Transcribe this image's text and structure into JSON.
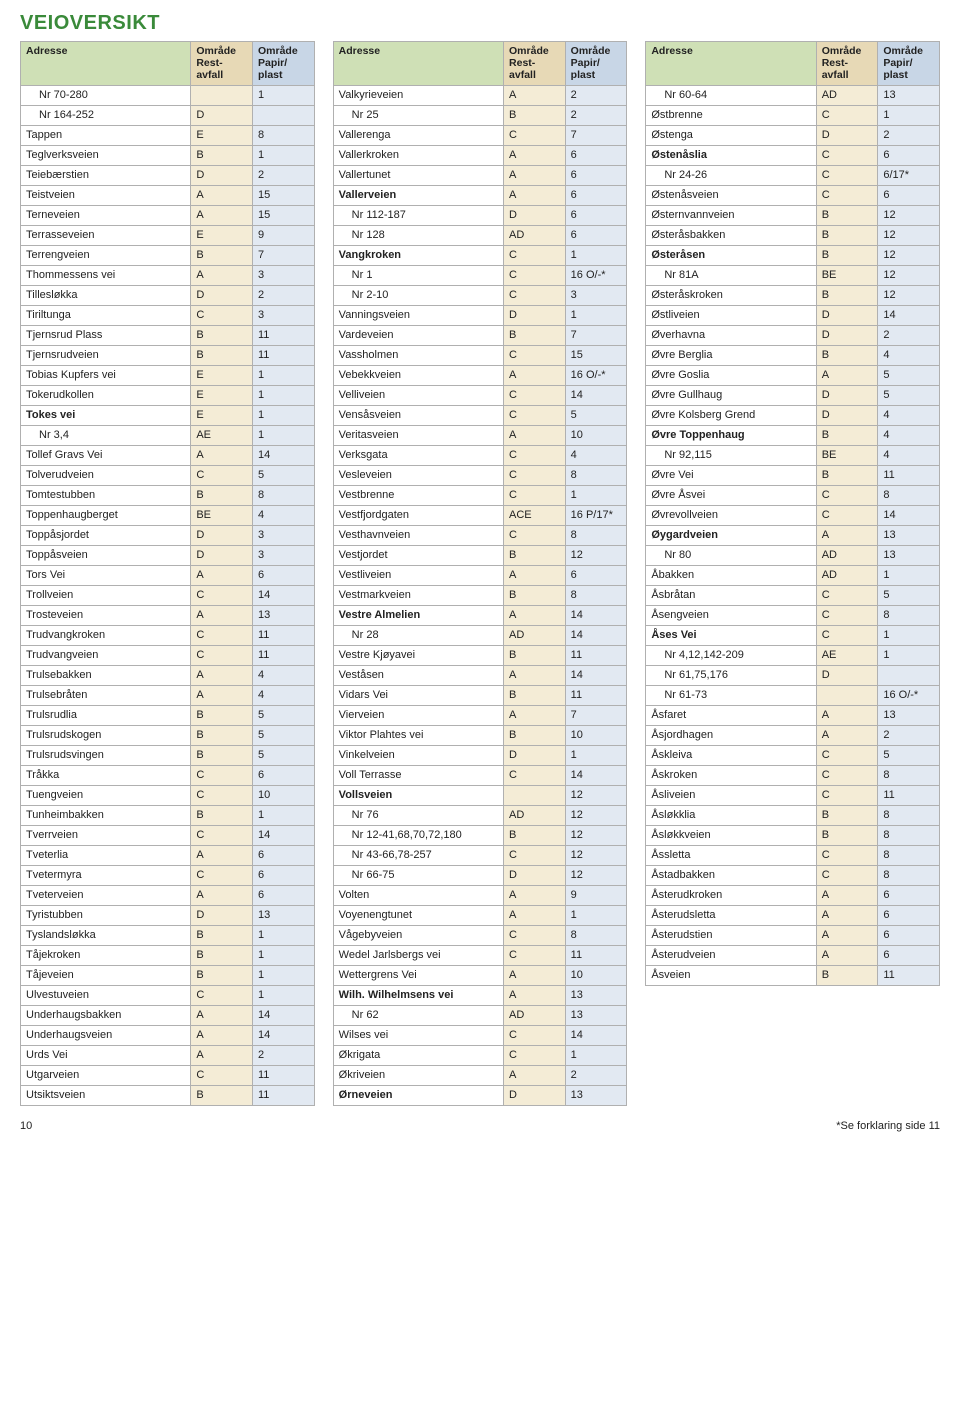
{
  "title": "VEIOVERSIKT",
  "headers": {
    "adresse": "Adresse",
    "omrade_rest": "Område Rest-avfall",
    "omrade_papir": "Område Papir/ plast"
  },
  "footer": {
    "page": "10",
    "footnote": "*Se forklaring side 11"
  },
  "col1": [
    {
      "a": "Nr 70-280",
      "b": "",
      "c": "1",
      "indent": true
    },
    {
      "a": "Nr 164-252",
      "b": "D",
      "c": "",
      "indent": true
    },
    {
      "a": "Tappen",
      "b": "E",
      "c": "8"
    },
    {
      "a": "Teglverksveien",
      "b": "B",
      "c": "1"
    },
    {
      "a": "Teiebærstien",
      "b": "D",
      "c": "2"
    },
    {
      "a": "Teistveien",
      "b": "A",
      "c": "15"
    },
    {
      "a": "Terneveien",
      "b": "A",
      "c": "15"
    },
    {
      "a": "Terrasseveien",
      "b": "E",
      "c": "9"
    },
    {
      "a": "Terrengveien",
      "b": "B",
      "c": "7"
    },
    {
      "a": "Thommessens vei",
      "b": "A",
      "c": "3"
    },
    {
      "a": "Tillesløkka",
      "b": "D",
      "c": "2"
    },
    {
      "a": "Tiriltunga",
      "b": "C",
      "c": "3"
    },
    {
      "a": "Tjernsrud Plass",
      "b": "B",
      "c": "11"
    },
    {
      "a": "Tjernsrudveien",
      "b": "B",
      "c": "11"
    },
    {
      "a": "Tobias Kupfers vei",
      "b": "E",
      "c": "1"
    },
    {
      "a": "Tokerudkollen",
      "b": "E",
      "c": "1"
    },
    {
      "a": "Tokes vei",
      "b": "E",
      "c": "1",
      "bold": true
    },
    {
      "a": "Nr 3,4",
      "b": "AE",
      "c": "1",
      "indent": true
    },
    {
      "a": "Tollef Gravs Vei",
      "b": "A",
      "c": "14"
    },
    {
      "a": "Tolverudveien",
      "b": "C",
      "c": "5"
    },
    {
      "a": "Tomtestubben",
      "b": "B",
      "c": "8"
    },
    {
      "a": "Toppenhaugberget",
      "b": "BE",
      "c": "4"
    },
    {
      "a": "Toppåsjordet",
      "b": "D",
      "c": "3"
    },
    {
      "a": "Toppåsveien",
      "b": "D",
      "c": "3"
    },
    {
      "a": "Tors Vei",
      "b": "A",
      "c": "6"
    },
    {
      "a": "Trollveien",
      "b": "C",
      "c": "14"
    },
    {
      "a": "Trosteveien",
      "b": "A",
      "c": "13"
    },
    {
      "a": "Trudvangkroken",
      "b": "C",
      "c": "11"
    },
    {
      "a": "Trudvangveien",
      "b": "C",
      "c": "11"
    },
    {
      "a": "Trulsebakken",
      "b": "A",
      "c": "4"
    },
    {
      "a": "Trulsebråten",
      "b": "A",
      "c": "4"
    },
    {
      "a": "Trulsrudlia",
      "b": "B",
      "c": "5"
    },
    {
      "a": "Trulsrudskogen",
      "b": "B",
      "c": "5"
    },
    {
      "a": "Trulsrudsvingen",
      "b": "B",
      "c": "5"
    },
    {
      "a": "Tråkka",
      "b": "C",
      "c": "6"
    },
    {
      "a": "Tuengveien",
      "b": "C",
      "c": "10"
    },
    {
      "a": "Tunheimbakken",
      "b": "B",
      "c": "1"
    },
    {
      "a": "Tverrveien",
      "b": "C",
      "c": "14"
    },
    {
      "a": "Tveterlia",
      "b": "A",
      "c": "6"
    },
    {
      "a": "Tvetermyra",
      "b": "C",
      "c": "6"
    },
    {
      "a": "Tveterveien",
      "b": "A",
      "c": "6"
    },
    {
      "a": "Tyristubben",
      "b": "D",
      "c": "13"
    },
    {
      "a": "Tyslandsløkka",
      "b": "B",
      "c": "1"
    },
    {
      "a": "Tåjekroken",
      "b": "B",
      "c": "1"
    },
    {
      "a": "Tåjeveien",
      "b": "B",
      "c": "1"
    },
    {
      "a": "Ulvestuveien",
      "b": "C",
      "c": "1"
    },
    {
      "a": "Underhaugsbakken",
      "b": "A",
      "c": "14"
    },
    {
      "a": "Underhaugsveien",
      "b": "A",
      "c": "14"
    },
    {
      "a": "Urds Vei",
      "b": "A",
      "c": "2"
    },
    {
      "a": "Utgarveien",
      "b": "C",
      "c": "11"
    },
    {
      "a": "Utsiktsveien",
      "b": "B",
      "c": "11"
    }
  ],
  "col2": [
    {
      "a": "Valkyrieveien",
      "b": "A",
      "c": "2"
    },
    {
      "a": "Nr 25",
      "b": "B",
      "c": "2",
      "indent": true
    },
    {
      "a": "Vallerenga",
      "b": "C",
      "c": "7"
    },
    {
      "a": "Vallerkroken",
      "b": "A",
      "c": "6"
    },
    {
      "a": "Vallertunet",
      "b": "A",
      "c": "6"
    },
    {
      "a": "Vallerveien",
      "b": "A",
      "c": "6",
      "bold": true
    },
    {
      "a": "Nr 112-187",
      "b": "D",
      "c": "6",
      "indent": true
    },
    {
      "a": "Nr 128",
      "b": "AD",
      "c": "6",
      "indent": true
    },
    {
      "a": "Vangkroken",
      "b": "C",
      "c": "1",
      "bold": true
    },
    {
      "a": "Nr 1",
      "b": "C",
      "c": "16 O/-*",
      "indent": true
    },
    {
      "a": "Nr 2-10",
      "b": "C",
      "c": "3",
      "indent": true
    },
    {
      "a": "Vanningsveien",
      "b": "D",
      "c": "1"
    },
    {
      "a": "Vardeveien",
      "b": "B",
      "c": "7"
    },
    {
      "a": "Vassholmen",
      "b": "C",
      "c": "15"
    },
    {
      "a": "Vebekkveien",
      "b": "A",
      "c": "16 O/-*"
    },
    {
      "a": "Velliveien",
      "b": "C",
      "c": "14"
    },
    {
      "a": "Vensåsveien",
      "b": "C",
      "c": "5"
    },
    {
      "a": "Veritasveien",
      "b": "A",
      "c": "10"
    },
    {
      "a": "Verksgata",
      "b": "C",
      "c": "4"
    },
    {
      "a": "Vesleveien",
      "b": "C",
      "c": "8"
    },
    {
      "a": "Vestbrenne",
      "b": "C",
      "c": "1"
    },
    {
      "a": "Vestfjordgaten",
      "b": "ACE",
      "c": "16 P/17*"
    },
    {
      "a": "Vesthavnveien",
      "b": "C",
      "c": "8"
    },
    {
      "a": "Vestjordet",
      "b": "B",
      "c": "12"
    },
    {
      "a": "Vestliveien",
      "b": "A",
      "c": "6"
    },
    {
      "a": "Vestmarkveien",
      "b": "B",
      "c": "8"
    },
    {
      "a": "Vestre Almelien",
      "b": "A",
      "c": "14",
      "bold": true
    },
    {
      "a": "Nr 28",
      "b": "AD",
      "c": "14",
      "indent": true
    },
    {
      "a": "Vestre Kjøyavei",
      "b": "B",
      "c": "11"
    },
    {
      "a": "Veståsen",
      "b": "A",
      "c": "14"
    },
    {
      "a": "Vidars Vei",
      "b": "B",
      "c": "11"
    },
    {
      "a": "Vierveien",
      "b": "A",
      "c": "7"
    },
    {
      "a": "Viktor Plahtes vei",
      "b": "B",
      "c": "10"
    },
    {
      "a": "Vinkelveien",
      "b": "D",
      "c": "1"
    },
    {
      "a": "Voll Terrasse",
      "b": "C",
      "c": "14"
    },
    {
      "a": "Vollsveien",
      "b": "",
      "c": "12",
      "bold": true
    },
    {
      "a": "Nr 76",
      "b": "AD",
      "c": "12",
      "indent": true
    },
    {
      "a": "Nr 12-41,68,70,72,180",
      "b": "B",
      "c": "12",
      "indent": true
    },
    {
      "a": "Nr 43-66,78-257",
      "b": "C",
      "c": "12",
      "indent": true
    },
    {
      "a": "Nr 66-75",
      "b": "D",
      "c": "12",
      "indent": true
    },
    {
      "a": "Volten",
      "b": "A",
      "c": "9"
    },
    {
      "a": "Voyenengtunet",
      "b": "A",
      "c": "1"
    },
    {
      "a": "Vågebyveien",
      "b": "C",
      "c": "8"
    },
    {
      "a": "Wedel Jarlsbergs vei",
      "b": "C",
      "c": "11"
    },
    {
      "a": "Wettergrens Vei",
      "b": "A",
      "c": "10"
    },
    {
      "a": "Wilh. Wilhelmsens vei",
      "b": "A",
      "c": "13",
      "bold": true
    },
    {
      "a": "Nr 62",
      "b": "AD",
      "c": "13",
      "indent": true
    },
    {
      "a": "Wilses vei",
      "b": "C",
      "c": "14"
    },
    {
      "a": "Økrigata",
      "b": "C",
      "c": "1"
    },
    {
      "a": "Økriveien",
      "b": "A",
      "c": "2"
    },
    {
      "a": "Ørneveien",
      "b": "D",
      "c": "13",
      "bold": true
    }
  ],
  "col3": [
    {
      "a": "Nr 60-64",
      "b": "AD",
      "c": "13",
      "indent": true
    },
    {
      "a": "Østbrenne",
      "b": "C",
      "c": "1"
    },
    {
      "a": "Østenga",
      "b": "D",
      "c": "2"
    },
    {
      "a": "Østenåslia",
      "b": "C",
      "c": "6",
      "bold": true
    },
    {
      "a": "Nr 24-26",
      "b": "C",
      "c": "6/17*",
      "indent": true
    },
    {
      "a": "Østenåsveien",
      "b": "C",
      "c": "6"
    },
    {
      "a": "Østernvannveien",
      "b": "B",
      "c": "12"
    },
    {
      "a": "Østeråsbakken",
      "b": "B",
      "c": "12"
    },
    {
      "a": "Østeråsen",
      "b": "B",
      "c": "12",
      "bold": true
    },
    {
      "a": "Nr 81A",
      "b": "BE",
      "c": "12",
      "indent": true
    },
    {
      "a": "Østeråskroken",
      "b": "B",
      "c": "12"
    },
    {
      "a": "Østliveien",
      "b": "D",
      "c": "14"
    },
    {
      "a": "Øverhavna",
      "b": "D",
      "c": "2"
    },
    {
      "a": "Øvre Berglia",
      "b": "B",
      "c": "4"
    },
    {
      "a": "Øvre Goslia",
      "b": "A",
      "c": "5"
    },
    {
      "a": "Øvre Gullhaug",
      "b": "D",
      "c": "5"
    },
    {
      "a": "Øvre Kolsberg Grend",
      "b": "D",
      "c": "4"
    },
    {
      "a": "Øvre Toppenhaug",
      "b": "B",
      "c": "4",
      "bold": true
    },
    {
      "a": "Nr 92,115",
      "b": "BE",
      "c": "4",
      "indent": true
    },
    {
      "a": "Øvre Vei",
      "b": "B",
      "c": "11"
    },
    {
      "a": "Øvre Åsvei",
      "b": "C",
      "c": "8"
    },
    {
      "a": "Øvrevollveien",
      "b": "C",
      "c": "14"
    },
    {
      "a": "Øygardveien",
      "b": "A",
      "c": "13",
      "bold": true
    },
    {
      "a": "Nr 80",
      "b": "AD",
      "c": "13",
      "indent": true
    },
    {
      "a": "Åbakken",
      "b": "AD",
      "c": "1"
    },
    {
      "a": "Åsbråtan",
      "b": "C",
      "c": "5"
    },
    {
      "a": "Åsengveien",
      "b": "C",
      "c": "8"
    },
    {
      "a": "Åses Vei",
      "b": "C",
      "c": "1",
      "bold": true
    },
    {
      "a": "Nr 4,12,142-209",
      "b": "AE",
      "c": "1",
      "indent": true
    },
    {
      "a": "Nr 61,75,176",
      "b": "D",
      "c": "",
      "indent": true
    },
    {
      "a": "Nr 61-73",
      "b": "",
      "c": "16 O/-*",
      "indent": true
    },
    {
      "a": "Åsfaret",
      "b": "A",
      "c": "13"
    },
    {
      "a": "Åsjordhagen",
      "b": "A",
      "c": "2"
    },
    {
      "a": "Åskleiva",
      "b": "C",
      "c": "5"
    },
    {
      "a": "Åskroken",
      "b": "C",
      "c": "8"
    },
    {
      "a": "Åsliveien",
      "b": "C",
      "c": "11"
    },
    {
      "a": "Åsløkklia",
      "b": "B",
      "c": "8"
    },
    {
      "a": "Åsløkkveien",
      "b": "B",
      "c": "8"
    },
    {
      "a": "Åssletta",
      "b": "C",
      "c": "8"
    },
    {
      "a": "Åstadbakken",
      "b": "C",
      "c": "8"
    },
    {
      "a": "Åsterudkroken",
      "b": "A",
      "c": "6"
    },
    {
      "a": "Åsterudsletta",
      "b": "A",
      "c": "6"
    },
    {
      "a": "Åsterudstien",
      "b": "A",
      "c": "6"
    },
    {
      "a": "Åsterudveien",
      "b": "A",
      "c": "6"
    },
    {
      "a": "Åsveien",
      "b": "B",
      "c": "11"
    }
  ]
}
